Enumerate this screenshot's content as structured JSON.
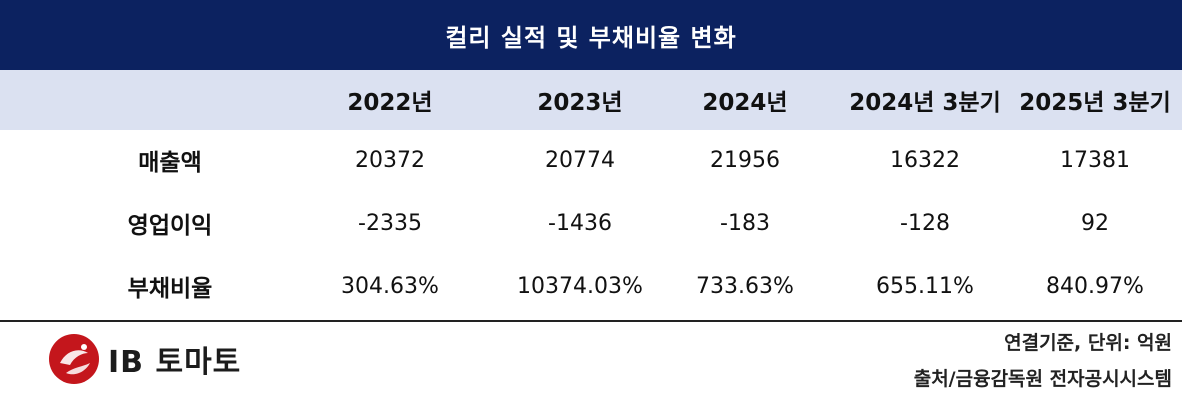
{
  "title": "컬리 실적 및 부채비율 변화",
  "columns": [
    "2022년",
    "2023년",
    "2024년",
    "2024년 3분기",
    "2025년 3분기"
  ],
  "rows": [
    {
      "label": "매출액",
      "values": [
        "20372",
        "20774",
        "21956",
        "16322",
        "17381"
      ]
    },
    {
      "label": "영업이익",
      "values": [
        "-2335",
        "-1436",
        "-183",
        "-128",
        "92"
      ]
    },
    {
      "label": "부채비율",
      "values": [
        "304.63%",
        "10374.03%",
        "733.63%",
        "655.11%",
        "840.97%"
      ]
    }
  ],
  "footer": {
    "unit_note": "연결기준, 단위: 억원",
    "source": "출처/금융감독원 전자공시시스템"
  },
  "logo": {
    "text": "IB 토마토",
    "icon": "tomato-logo-icon",
    "accent_color": "#c4161c"
  },
  "colors": {
    "title_bg": "#0c2260",
    "header_bg": "#dbe1f1"
  }
}
